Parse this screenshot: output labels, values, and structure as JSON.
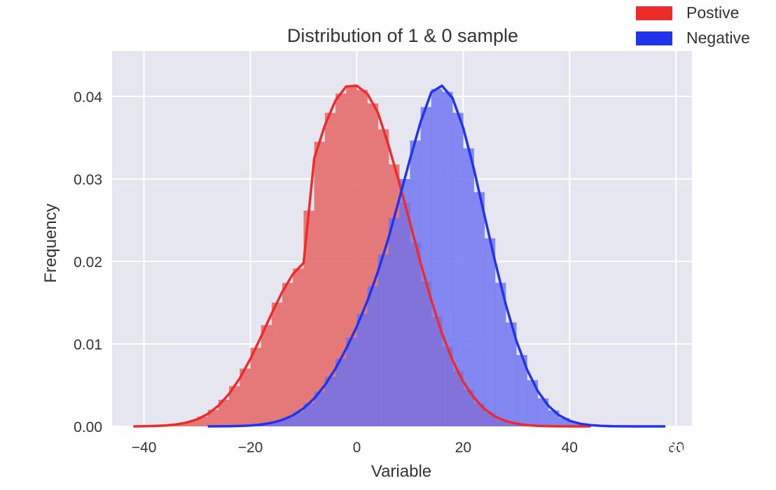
{
  "chart_data": {
    "type": "area",
    "title": "Distribution of 1 & 0 sample",
    "xlabel": "Variable",
    "ylabel": "Frequency",
    "xlim": [
      -46,
      63
    ],
    "ylim": [
      0,
      0.0455
    ],
    "x_ticks": [
      -40,
      -20,
      0,
      20,
      40,
      60
    ],
    "x_tick_labels": [
      "−40",
      "−20",
      "0",
      "20",
      "40",
      "60"
    ],
    "y_ticks": [
      0.0,
      0.01,
      0.02,
      0.03,
      0.04
    ],
    "y_tick_labels": [
      "0.00",
      "0.01",
      "0.02",
      "0.03",
      "0.04"
    ],
    "grid": true,
    "background": "#e5e6f0",
    "legend_placement": "top-right",
    "series": [
      {
        "name": "Postive",
        "color": "#ee2a2a",
        "hist_color": "#e57373",
        "kde": {
          "x": [
            -42,
            -40,
            -38,
            -36,
            -34,
            -32,
            -30,
            -28,
            -26,
            -24,
            -22,
            -20,
            -18,
            -16,
            -14,
            -12,
            -10,
            -8,
            -6,
            -4,
            -2,
            0,
            2,
            4,
            6,
            8,
            10,
            12,
            14,
            16,
            18,
            20,
            22,
            24,
            26,
            28,
            30,
            32,
            34,
            36,
            38,
            40,
            42,
            44
          ],
          "y": [
            0.0,
            2e-05,
            5e-05,
            0.00011,
            0.00023,
            0.00046,
            0.00086,
            0.00151,
            0.00251,
            0.00393,
            0.00583,
            0.00818,
            0.01087,
            0.01368,
            0.01632,
            0.01847,
            0.01981,
            0.0325,
            0.0365,
            0.0395,
            0.0412,
            0.0413,
            0.0403,
            0.038,
            0.034,
            0.0295,
            0.0247,
            0.0198,
            0.0153,
            0.0113,
            0.008,
            0.0054,
            0.0035,
            0.0021,
            0.0012,
            0.00065,
            0.00033,
            0.00016,
            7e-05,
            3e-05,
            1e-05,
            0.0,
            0.0,
            0.0
          ]
        }
      },
      {
        "name": "Negative",
        "color": "#2233ee",
        "hist_color": "#6b72f0",
        "kde": {
          "x": [
            -28,
            -26,
            -24,
            -22,
            -20,
            -18,
            -16,
            -14,
            -12,
            -10,
            -8,
            -6,
            -4,
            -2,
            0,
            2,
            4,
            6,
            8,
            10,
            12,
            14,
            16,
            18,
            20,
            22,
            24,
            26,
            28,
            30,
            32,
            34,
            36,
            38,
            40,
            42,
            44,
            46,
            48,
            50,
            52,
            54,
            56,
            58
          ],
          "y": [
            0.0,
            1e-05,
            2e-05,
            5e-05,
            0.00011,
            0.00022,
            0.00043,
            0.00078,
            0.00134,
            0.00219,
            0.00339,
            0.005,
            0.007,
            0.0094,
            0.0121,
            0.0152,
            0.0188,
            0.0229,
            0.0276,
            0.0324,
            0.0369,
            0.0405,
            0.0413,
            0.0398,
            0.0362,
            0.0312,
            0.0256,
            0.02,
            0.0148,
            0.0104,
            0.0069,
            0.0043,
            0.0025,
            0.00135,
            0.00068,
            0.00032,
            0.00014,
            6e-05,
            2e-05,
            1e-05,
            0.0,
            0.0,
            0.0,
            0.0
          ]
        }
      }
    ]
  },
  "watermark": "知乎 @求是汉"
}
